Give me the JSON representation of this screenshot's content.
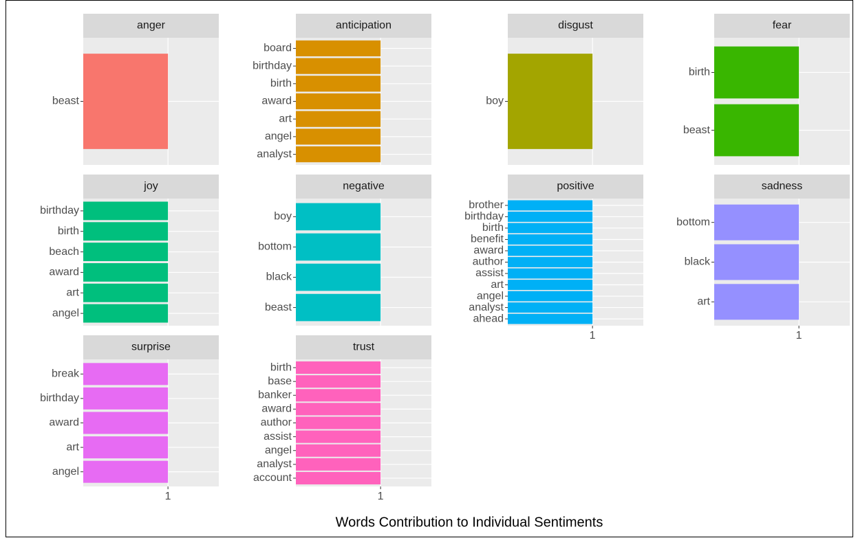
{
  "xlabel": "Words Contribution to Individual Sentiments",
  "chart_data": [
    {
      "type": "bar",
      "title": "anger",
      "categories": [
        "beast"
      ],
      "values": [
        1
      ],
      "color": "#F8766D",
      "xlim": [
        0,
        1.6
      ],
      "xticks": [
        1
      ],
      "grid": true
    },
    {
      "type": "bar",
      "title": "anticipation",
      "categories": [
        "board",
        "birthday",
        "birth",
        "award",
        "art",
        "angel",
        "analyst"
      ],
      "values": [
        1,
        1,
        1,
        1,
        1,
        1,
        1
      ],
      "color": "#D89000",
      "xlim": [
        0,
        1.6
      ],
      "xticks": [
        1
      ],
      "grid": true
    },
    {
      "type": "bar",
      "title": "disgust",
      "categories": [
        "boy"
      ],
      "values": [
        1
      ],
      "color": "#A3A500",
      "xlim": [
        0,
        1.6
      ],
      "xticks": [
        1
      ],
      "grid": true
    },
    {
      "type": "bar",
      "title": "fear",
      "categories": [
        "birth",
        "beast"
      ],
      "values": [
        1,
        1
      ],
      "color": "#39B600",
      "xlim": [
        0,
        1.6
      ],
      "xticks": [
        1
      ],
      "grid": true
    },
    {
      "type": "bar",
      "title": "joy",
      "categories": [
        "birthday",
        "birth",
        "beach",
        "award",
        "art",
        "angel"
      ],
      "values": [
        1,
        1,
        1,
        1,
        1,
        1
      ],
      "color": "#00BF7D",
      "xlim": [
        0,
        1.6
      ],
      "xticks": [
        1
      ],
      "grid": true
    },
    {
      "type": "bar",
      "title": "negative",
      "categories": [
        "boy",
        "bottom",
        "black",
        "beast"
      ],
      "values": [
        1,
        1,
        1,
        1
      ],
      "color": "#00BFC4",
      "xlim": [
        0,
        1.6
      ],
      "xticks": [
        1
      ],
      "grid": true
    },
    {
      "type": "bar",
      "title": "positive",
      "categories": [
        "brother",
        "birthday",
        "birth",
        "benefit",
        "award",
        "author",
        "assist",
        "art",
        "angel",
        "analyst",
        "ahead"
      ],
      "values": [
        1,
        1,
        1,
        1,
        1,
        1,
        1,
        1,
        1,
        1,
        1
      ],
      "color": "#00B0F6",
      "xlim": [
        0,
        1.6
      ],
      "xticks": [
        1
      ],
      "grid": true
    },
    {
      "type": "bar",
      "title": "sadness",
      "categories": [
        "bottom",
        "black",
        "art"
      ],
      "values": [
        1,
        1,
        1
      ],
      "color": "#9590FF",
      "xlim": [
        0,
        1.6
      ],
      "xticks": [
        1
      ],
      "grid": true
    },
    {
      "type": "bar",
      "title": "surprise",
      "categories": [
        "break",
        "birthday",
        "award",
        "art",
        "angel"
      ],
      "values": [
        1,
        1,
        1,
        1,
        1
      ],
      "color": "#E76BF3",
      "xlim": [
        0,
        1.6
      ],
      "xticks": [
        1
      ],
      "grid": true
    },
    {
      "type": "bar",
      "title": "trust",
      "categories": [
        "birth",
        "base",
        "banker",
        "award",
        "author",
        "assist",
        "angel",
        "analyst",
        "account"
      ],
      "values": [
        1,
        1,
        1,
        1,
        1,
        1,
        1,
        1,
        1
      ],
      "color": "#FF62BC",
      "xlim": [
        0,
        1.6
      ],
      "xticks": [
        1
      ],
      "grid": true
    }
  ]
}
